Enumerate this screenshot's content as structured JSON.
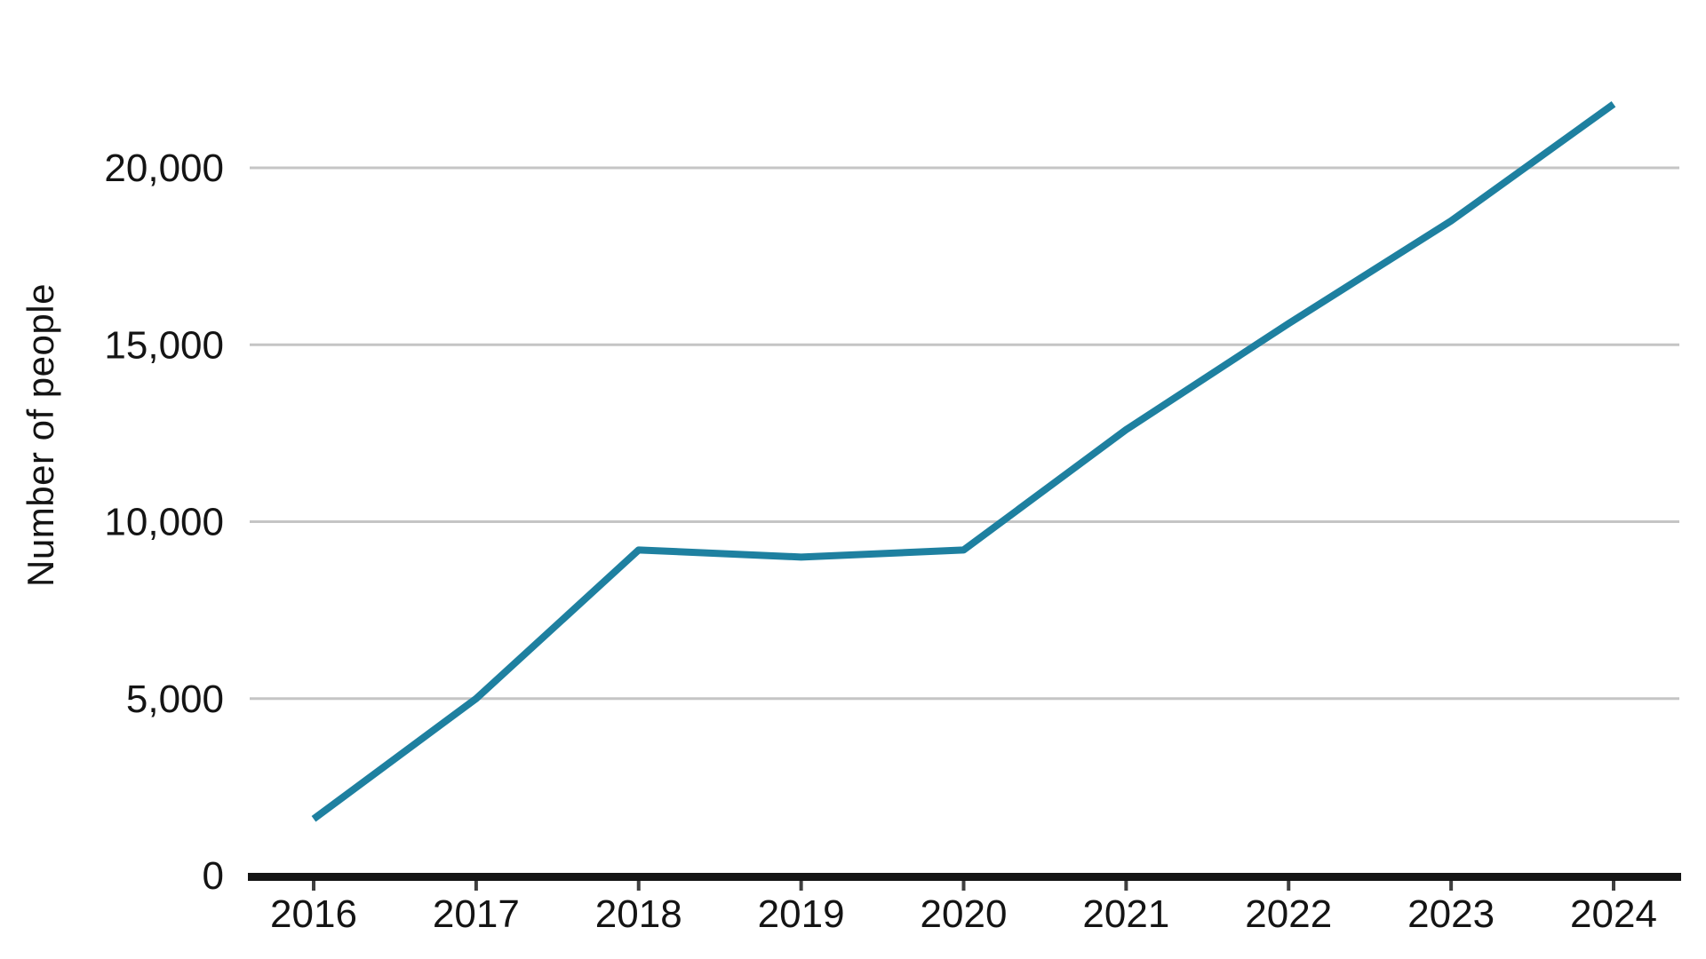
{
  "chart_data": {
    "type": "line",
    "title": "",
    "xlabel": "",
    "ylabel": "Number of people",
    "x": [
      2016,
      2017,
      2018,
      2019,
      2020,
      2021,
      2022,
      2023,
      2024
    ],
    "xtick_labels": [
      "2016",
      "2017",
      "2018",
      "2019",
      "2020",
      "2021",
      "2022",
      "2023",
      "2024"
    ],
    "series": [
      {
        "name": "Number of people",
        "values": [
          1600,
          5000,
          9200,
          9000,
          9200,
          12600,
          15600,
          18500,
          21800
        ]
      }
    ],
    "ylim": [
      0,
      22500
    ],
    "yticks": [
      0,
      5000,
      10000,
      15000,
      20000
    ],
    "ytick_labels": [
      "0",
      "5,000",
      "10,000",
      "15,000",
      "20,000"
    ],
    "grid": true,
    "legend": false
  },
  "colors": {
    "line": "#1e80a0",
    "gridline": "#c5c5c5",
    "axis": "#141414",
    "tick": "#3f3f3f",
    "text": "#141414"
  }
}
